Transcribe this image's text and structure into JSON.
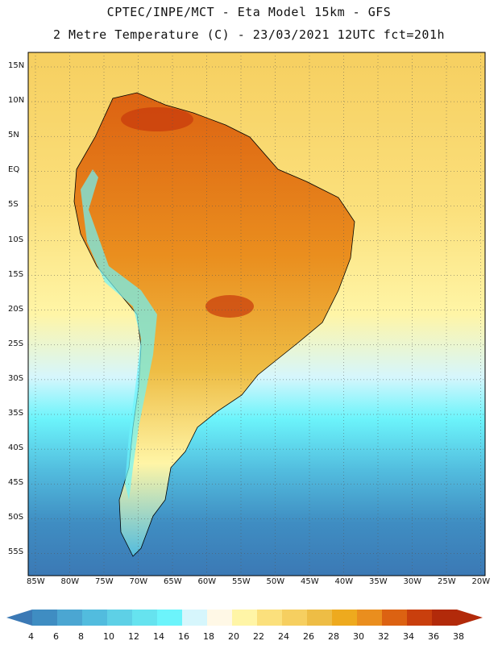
{
  "header": {
    "line1": "CPTEC/INPE/MCT -   Eta Model 15km - GFS",
    "line2": "2 Metre Temperature (C) - 23/03/2021 12UTC fct=201h"
  },
  "map": {
    "lat_labels": [
      "15N",
      "10N",
      "5N",
      "EQ",
      "5S",
      "10S",
      "15S",
      "20S",
      "25S",
      "30S",
      "35S",
      "40S",
      "45S",
      "50S",
      "55S"
    ],
    "lon_labels": [
      "85W",
      "80W",
      "75W",
      "70W",
      "65W",
      "60W",
      "55W",
      "50W",
      "45W",
      "40W",
      "35W",
      "30W",
      "25W",
      "20W"
    ]
  },
  "legend": {
    "values": [
      "4",
      "6",
      "8",
      "10",
      "12",
      "14",
      "16",
      "18",
      "20",
      "22",
      "24",
      "26",
      "28",
      "30",
      "32",
      "34",
      "36",
      "38"
    ],
    "colors": [
      "#3b79b5",
      "#3f8dc2",
      "#4ba6d2",
      "#52bcde",
      "#5ed0e6",
      "#66e3ef",
      "#6cf4fb",
      "#d6f6fc",
      "#fff8e6",
      "#fff5a6",
      "#fbe07c",
      "#f6cf60",
      "#eebd45",
      "#eeaa1e",
      "#ea8e1e",
      "#dc6212",
      "#c93f0d",
      "#b22a0a"
    ]
  }
}
